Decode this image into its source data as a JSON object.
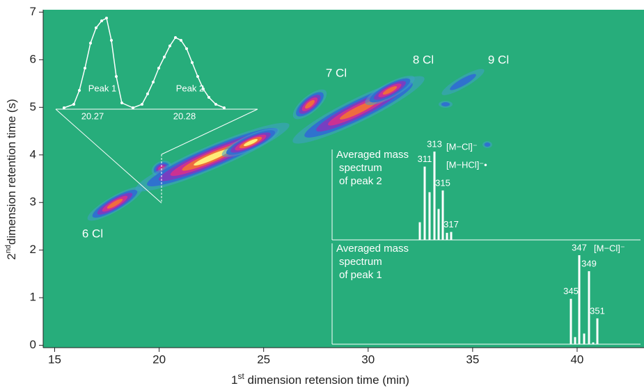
{
  "chart_data": {
    "type": "contour",
    "x_label": {
      "prefix": "1",
      "sup": "st",
      "text": " dimension retension time (min)"
    },
    "y_label": {
      "prefix": "2",
      "sup": "nd",
      "text": "dimension retention time (s)"
    },
    "xlim": [
      14.45,
      43.2
    ],
    "ylim": [
      -0.05,
      7.05
    ],
    "xticks": [
      15,
      20,
      25,
      30,
      35,
      40
    ],
    "yticks": [
      0,
      1,
      2,
      3,
      4,
      5,
      6,
      7
    ],
    "background_color": "#27ad7b",
    "cluster_labels": [
      "6 Cl",
      "7 Cl",
      "8 Cl",
      "9 Cl"
    ],
    "peak_inset": {
      "labels": [
        "Peak 1",
        "Peak 2"
      ],
      "times": [
        "20.27",
        "20.28"
      ]
    },
    "spectra": [
      {
        "title_lines": [
          "Averaged mass",
          "spectrum",
          "of peak 2"
        ],
        "ions": [
          "[M−Cl]⁻",
          "[M−HCl]⁻•"
        ],
        "labels": [
          null,
          "311",
          null,
          "313",
          null,
          "315",
          null,
          "317"
        ],
        "intensities": [
          20,
          83,
          54,
          100,
          35,
          56,
          8,
          9
        ]
      },
      {
        "title_lines": [
          "Averaged mass",
          "spectrum",
          "of peak 1"
        ],
        "ions": [
          "[M−Cl]⁻"
        ],
        "labels": [
          "345",
          null,
          "347",
          null,
          "349",
          null,
          "351"
        ],
        "intensities": [
          51,
          8,
          100,
          12,
          82,
          2,
          29
        ]
      }
    ]
  }
}
